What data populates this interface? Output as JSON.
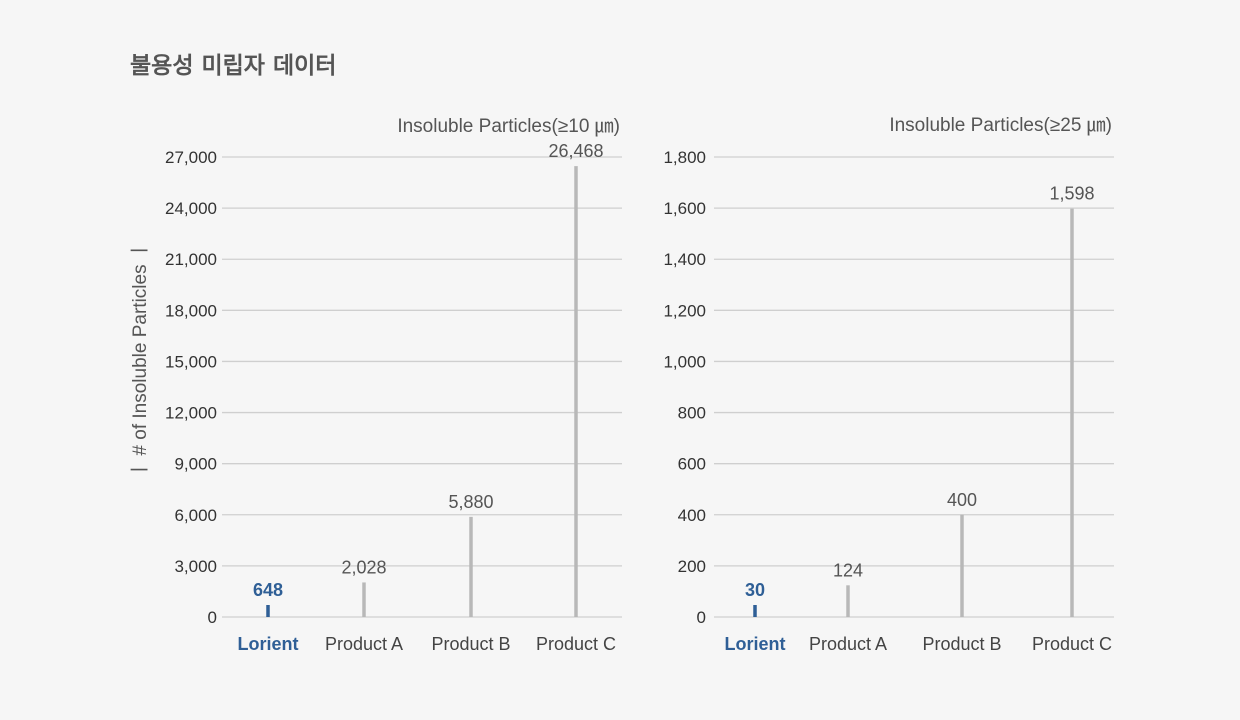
{
  "page": {
    "title": "불용성 미립자 데이터"
  },
  "chart_data": [
    {
      "type": "bar",
      "title": "Insoluble Particles(≥10 ㎛)",
      "xlabel": "",
      "ylabel": "ㅣ # of Insoluble Particles ㅣ",
      "ylim": [
        0,
        27000
      ],
      "yticks": [
        "0",
        "3,000",
        "6,000",
        "9,000",
        "12,000",
        "15,000",
        "18,000",
        "21,000",
        "24,000",
        "27,000"
      ],
      "ytick_values": [
        0,
        3000,
        6000,
        9000,
        12000,
        15000,
        18000,
        21000,
        24000,
        27000
      ],
      "categories": [
        "Lorient",
        "Product A",
        "Product B",
        "Product C"
      ],
      "values": [
        648,
        2028,
        5880,
        26468
      ],
      "value_labels": [
        "648",
        "2,028",
        "5,880",
        "26,468"
      ],
      "highlight_index": 0,
      "grid": true,
      "colors": {
        "highlight": "#2f5f96",
        "bar": "#b8b8b8",
        "grid": "#cfcfcf"
      }
    },
    {
      "type": "bar",
      "title": "Insoluble Particles(≥25 ㎛)",
      "xlabel": "",
      "ylabel": "",
      "ylim": [
        0,
        1800
      ],
      "yticks": [
        "0",
        "200",
        "400",
        "600",
        "800",
        "1,000",
        "1,200",
        "1,400",
        "1,600",
        "1,800"
      ],
      "ytick_values": [
        0,
        200,
        400,
        600,
        800,
        1000,
        1200,
        1400,
        1600,
        1800
      ],
      "categories": [
        "Lorient",
        "Product A",
        "Product B",
        "Product C"
      ],
      "values": [
        30,
        124,
        400,
        1598
      ],
      "value_labels": [
        "30",
        "124",
        "400",
        "1,598"
      ],
      "highlight_index": 0,
      "grid": true,
      "colors": {
        "highlight": "#2f5f96",
        "bar": "#b8b8b8",
        "grid": "#cfcfcf"
      }
    }
  ]
}
